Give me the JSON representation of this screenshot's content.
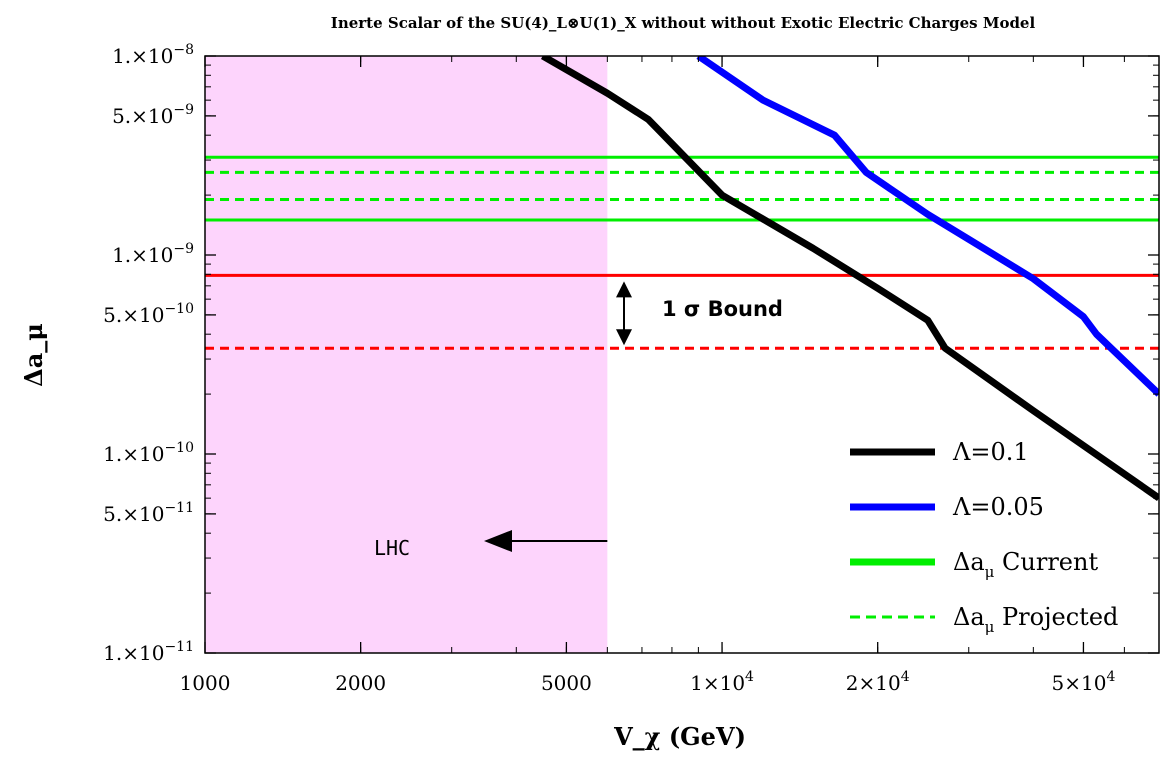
{
  "chart_data": {
    "type": "line",
    "title": "Inerte Scalar of the SU(4)_L⊗U(1)_X without without Exotic Electric Charges Model",
    "xlabel": "V_χ (GeV)",
    "ylabel": "Δa_μ",
    "xscale": "log",
    "yscale": "log",
    "xlim": [
      1000,
      70000
    ],
    "ylim": [
      1e-11,
      1e-08
    ],
    "x_ticks": [
      {
        "value": 1000,
        "label": "1000"
      },
      {
        "value": 2000,
        "label": "2000"
      },
      {
        "value": 5000,
        "label": "5000"
      },
      {
        "value": 10000,
        "label": "1×10",
        "sup": "4"
      },
      {
        "value": 20000,
        "label": "2×10",
        "sup": "4"
      },
      {
        "value": 50000,
        "label": "5×10",
        "sup": "4"
      }
    ],
    "y_ticks": [
      {
        "value": 1e-08,
        "label": "1.×10",
        "sup": "−8"
      },
      {
        "value": 5e-09,
        "label": "5.×10",
        "sup": "−9"
      },
      {
        "value": 1e-09,
        "label": "1.×10",
        "sup": "−9"
      },
      {
        "value": 5e-10,
        "label": "5.×10",
        "sup": "−10"
      },
      {
        "value": 1e-10,
        "label": "1.×10",
        "sup": "−10"
      },
      {
        "value": 5e-11,
        "label": "5.×10",
        "sup": "−11"
      },
      {
        "value": 1e-11,
        "label": "1.×10",
        "sup": "−11"
      }
    ],
    "series": [
      {
        "name": "Λ=0.1",
        "color": "#000000",
        "x": [
          4500,
          6000,
          7200,
          10000,
          15000,
          20000,
          25000,
          27000,
          40000,
          70000
        ],
        "y": [
          1e-08,
          6.5e-09,
          4.8e-09,
          2e-09,
          1.08e-09,
          6.8e-10,
          4.7e-10,
          3.4e-10,
          1.65e-10,
          6e-11
        ]
      },
      {
        "name": "Λ=0.05",
        "color": "#0000ff",
        "x": [
          9000,
          12000,
          16500,
          19000,
          25000,
          30000,
          40000,
          50000,
          53000,
          70000
        ],
        "y": [
          1e-08,
          6e-09,
          4e-09,
          2.6e-09,
          1.6e-09,
          1.2e-09,
          7.6e-10,
          4.9e-10,
          4e-10,
          2e-10
        ]
      }
    ],
    "hlines": [
      {
        "name": "Δa_μ Current",
        "color": "#00ee00",
        "style": "solid",
        "y": [
          3.1e-09,
          1.5e-09
        ]
      },
      {
        "name": "Δa_μ Projected",
        "color": "#00ee00",
        "style": "dashed",
        "y": [
          2.6e-09,
          1.9e-09
        ]
      },
      {
        "name": "1 σ Bound upper",
        "color": "#ff0000",
        "style": "solid",
        "y": [
          7.9e-10
        ]
      },
      {
        "name": "1 σ Bound lower",
        "color": "#ff0000",
        "style": "dashed",
        "y": [
          3.4e-10
        ]
      }
    ],
    "shaded_region": {
      "x_from": 1000,
      "x_to": 6000,
      "color": "#fdd4fc",
      "label": "LHC"
    },
    "annotations": {
      "bound_label": "1 σ Bound",
      "lhc_label": "LHC"
    },
    "legend": {
      "position": "bottom-right",
      "entries": [
        {
          "label": "Λ=0.1",
          "color": "#000000",
          "style": "solid"
        },
        {
          "label": "Λ=0.05",
          "color": "#0000ff",
          "style": "solid"
        },
        {
          "label": "Δa",
          "sub": "μ",
          "rest": " Current",
          "color": "#00ee00",
          "style": "solid"
        },
        {
          "label": "Δa",
          "sub": "μ",
          "rest": " Projected",
          "color": "#00ee00",
          "style": "dashed"
        }
      ]
    },
    "grid": false
  }
}
